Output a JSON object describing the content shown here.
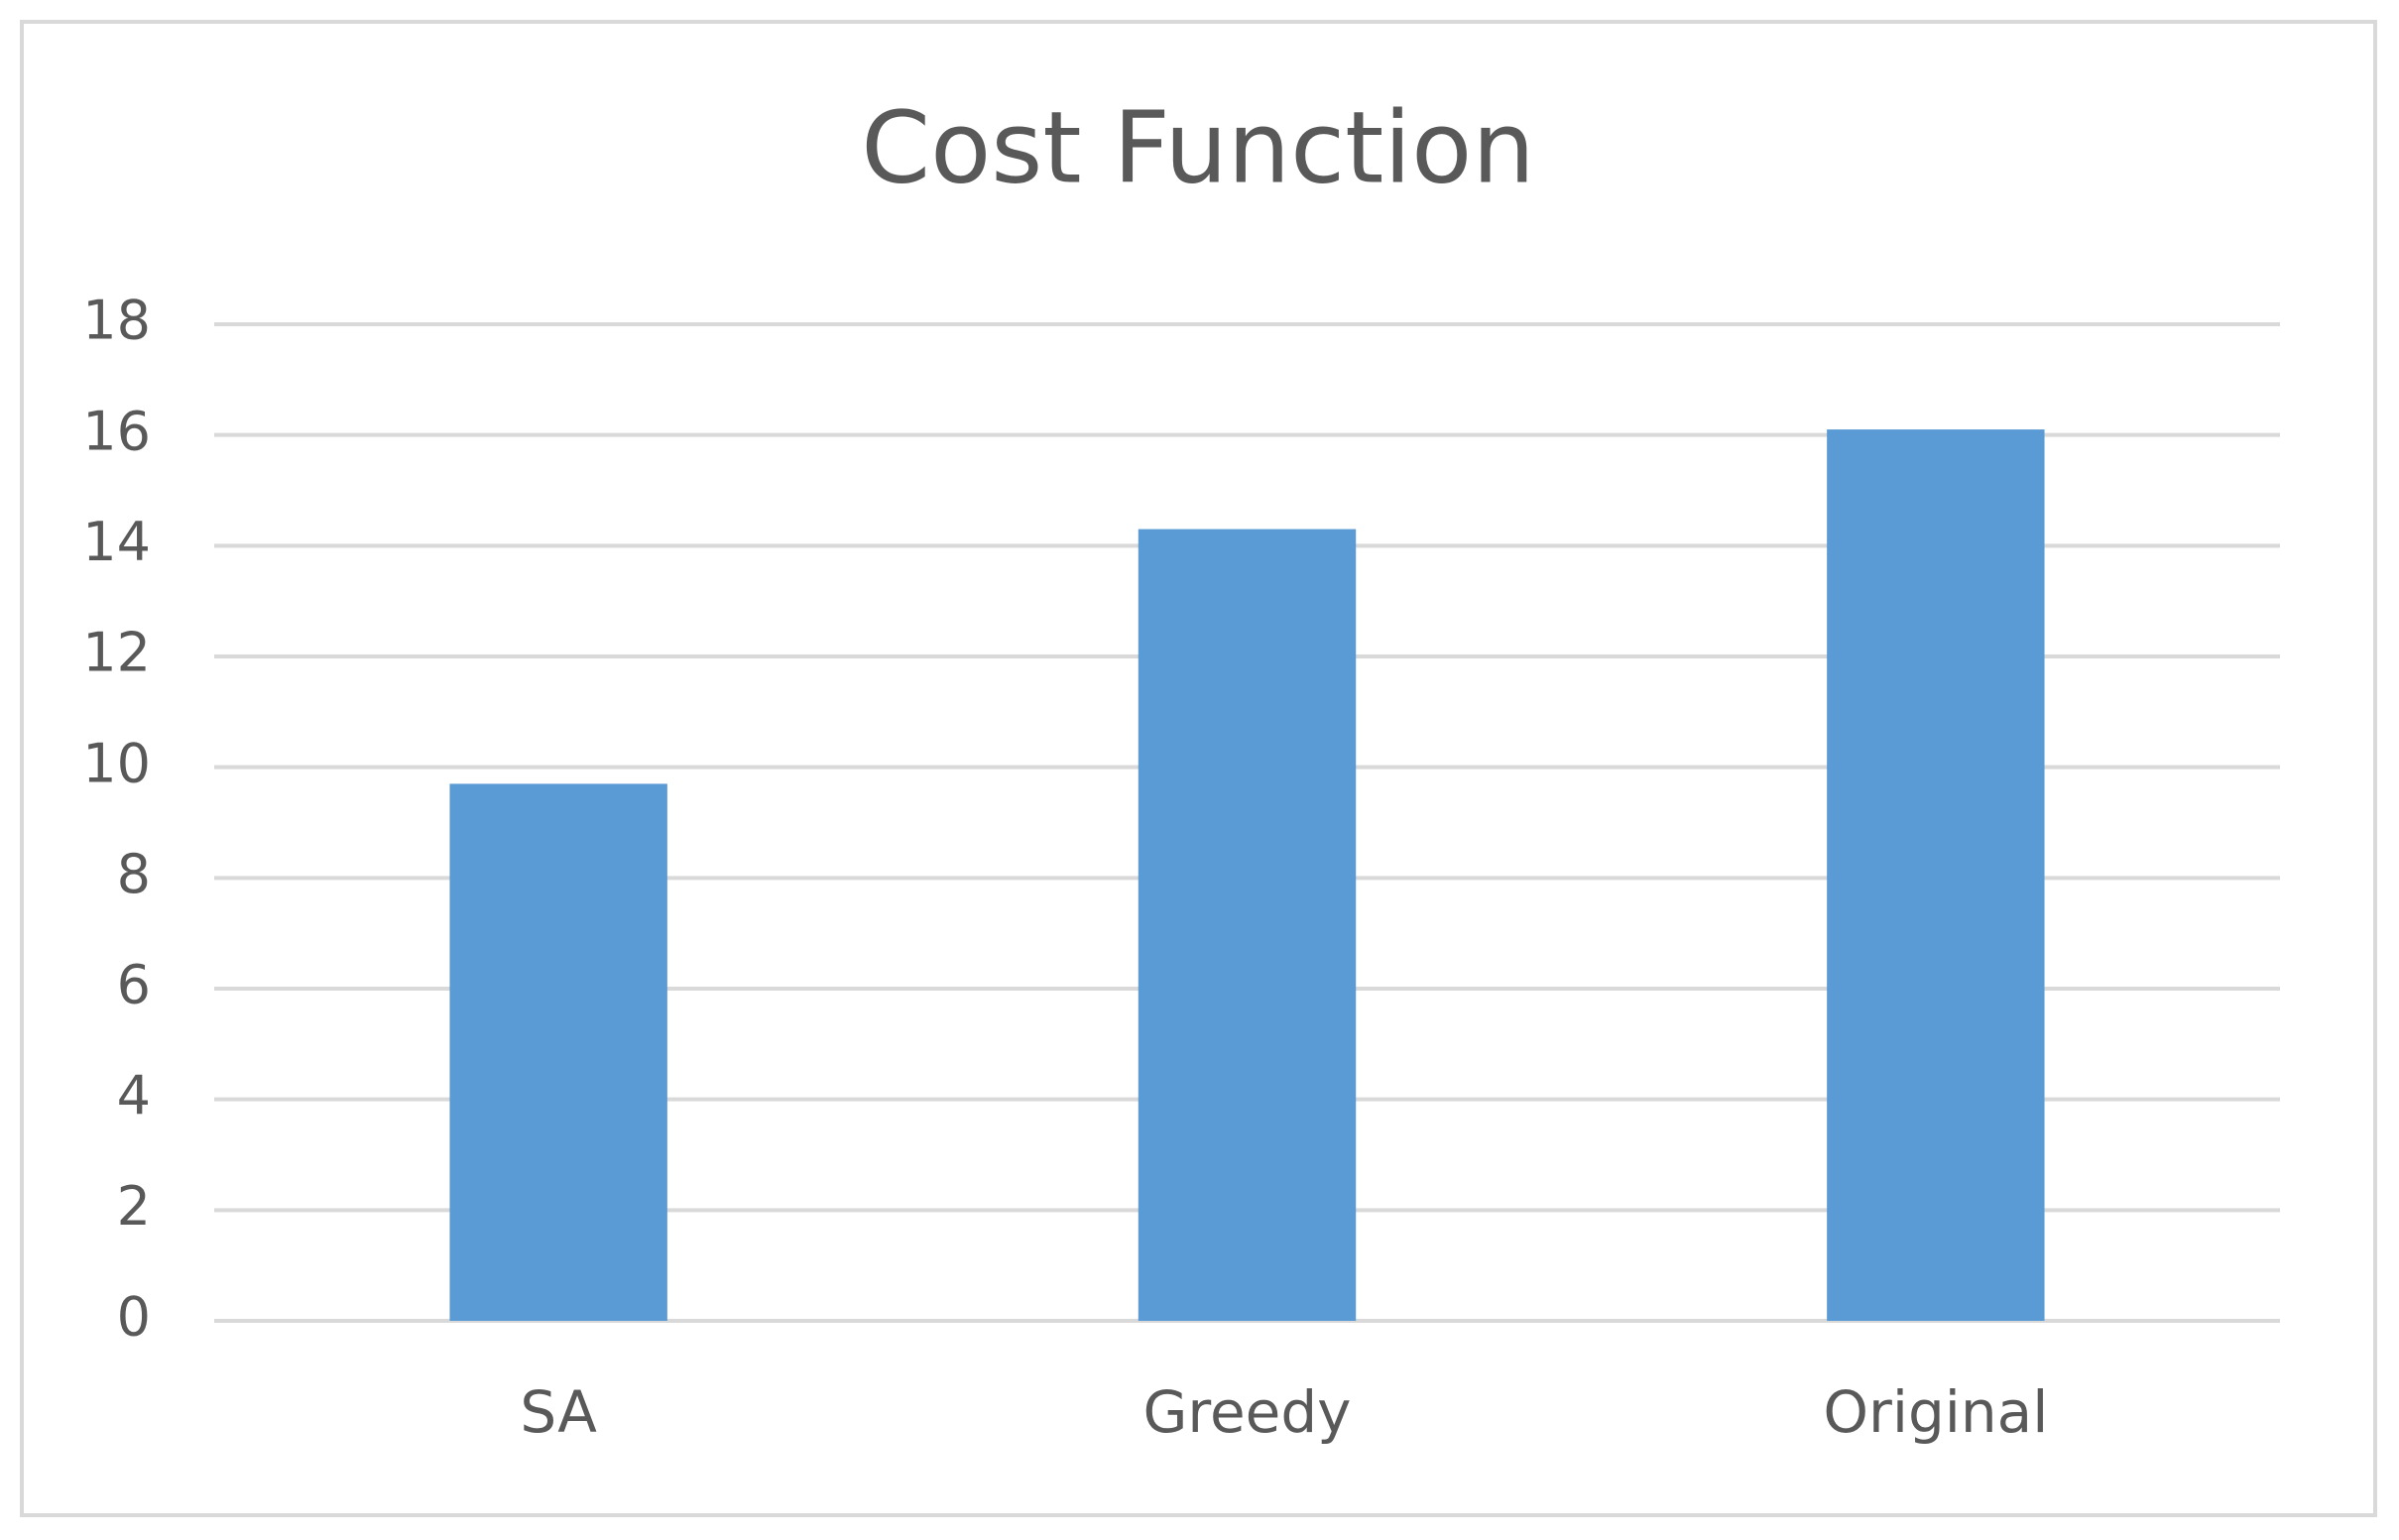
{
  "chart_data": {
    "type": "bar",
    "title": "Cost Function",
    "categories": [
      "SA",
      "Greedy",
      "Original"
    ],
    "values": [
      9.7,
      14.3,
      16.1
    ],
    "color": "#5b9bd5",
    "ylim": [
      0,
      18
    ],
    "yticks": [
      0,
      2,
      4,
      6,
      8,
      10,
      12,
      14,
      16,
      18
    ],
    "grid": true
  }
}
